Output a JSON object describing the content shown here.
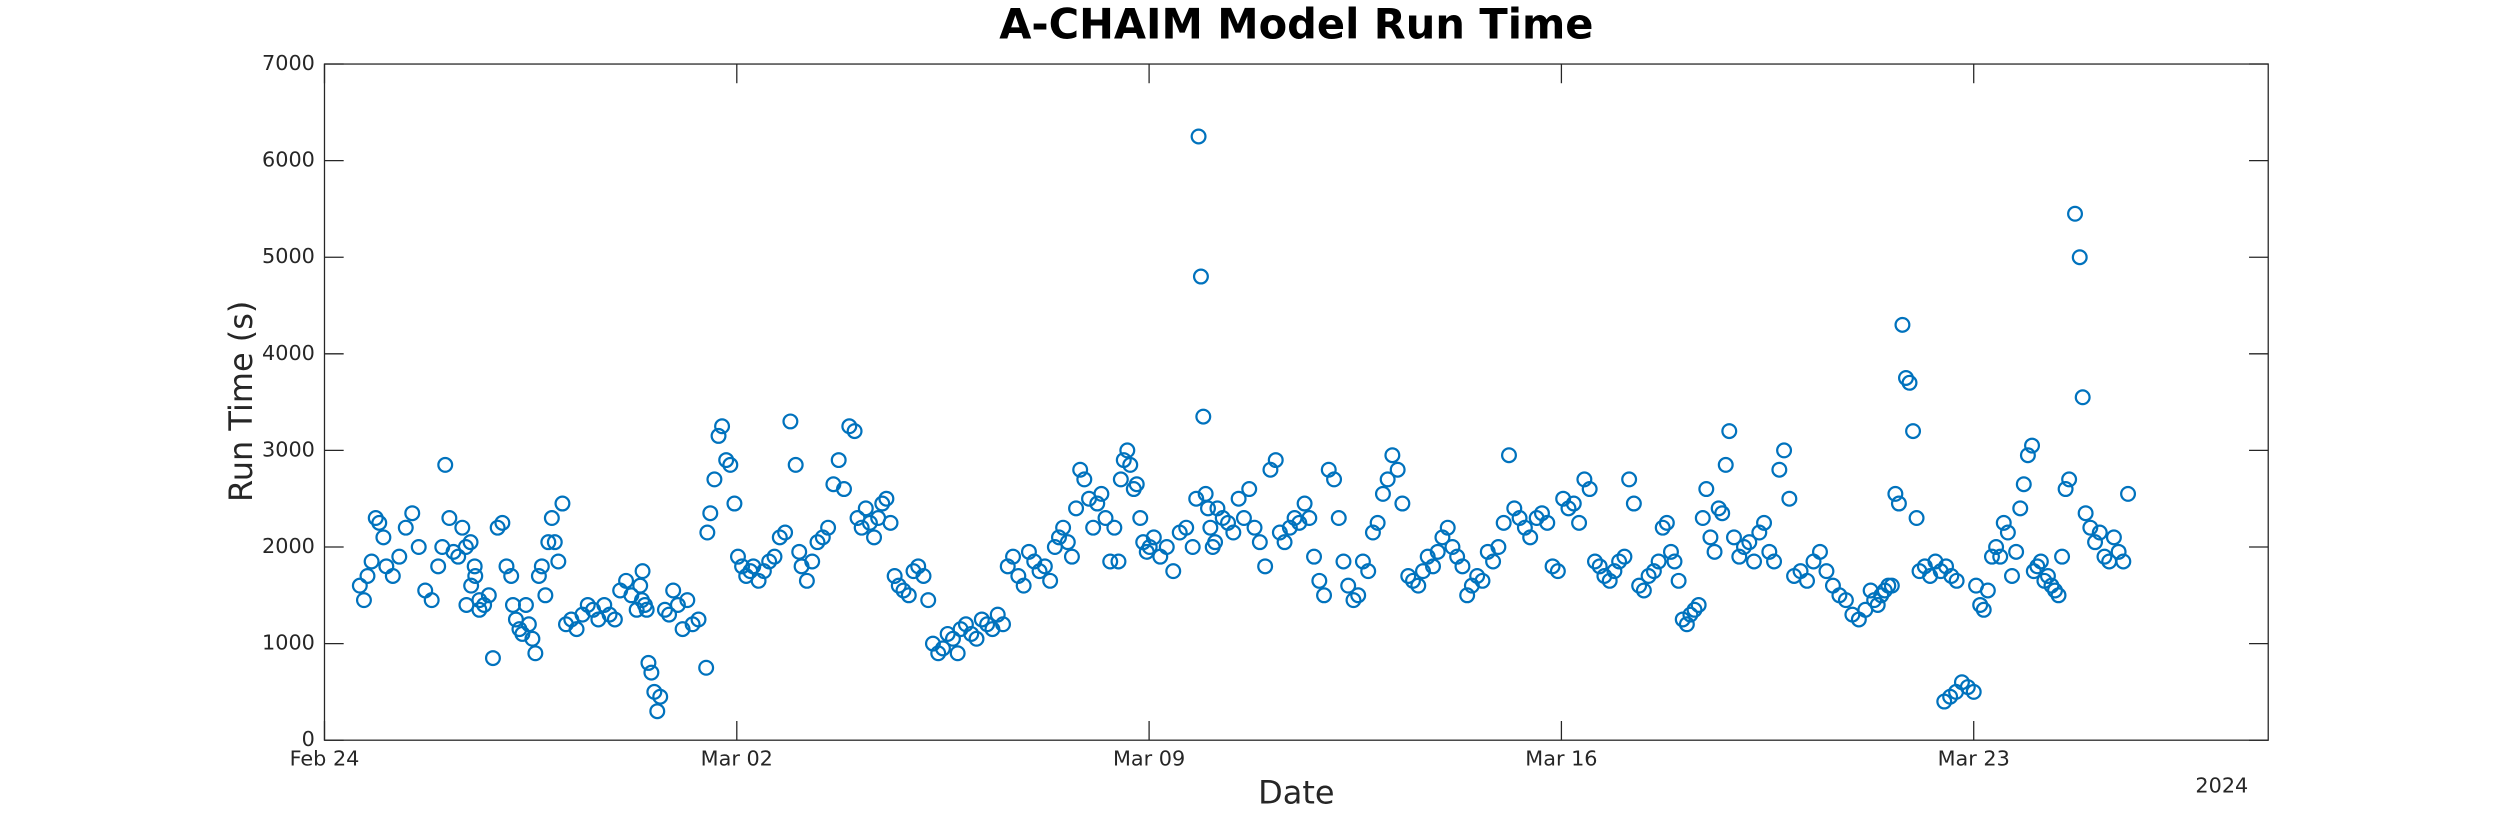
{
  "chart_data": {
    "type": "scatter",
    "title": "A-CHAIM Model Run Time",
    "xlabel": "Date",
    "xlabel_year": "2024",
    "ylabel": "Run Time (s)",
    "color": "#0072bd",
    "marker": "open-circle",
    "grid": false,
    "xlim": [
      0,
      33
    ],
    "xticks": [
      {
        "value": 0,
        "label": "Feb 24"
      },
      {
        "value": 7,
        "label": "Mar 02"
      },
      {
        "value": 14,
        "label": "Mar 09"
      },
      {
        "value": 21,
        "label": "Mar 16"
      },
      {
        "value": 28,
        "label": "Mar 23"
      }
    ],
    "ylim": [
      0,
      7000
    ],
    "yticks": [
      0,
      1000,
      2000,
      3000,
      4000,
      5000,
      6000,
      7000
    ],
    "x": [
      0.6,
      0.67,
      0.73,
      0.8,
      0.87,
      0.93,
      1.0,
      1.05,
      1.16,
      1.27,
      1.38,
      1.49,
      1.6,
      1.71,
      1.82,
      1.93,
      2.0,
      2.05,
      2.12,
      2.19,
      2.27,
      2.34,
      2.41,
      2.49,
      2.56,
      2.63,
      2.4,
      2.48,
      2.55,
      2.63,
      2.71,
      2.79,
      2.86,
      2.94,
      3.02,
      3.09,
      3.17,
      3.2,
      3.25,
      3.31,
      3.36,
      3.42,
      3.47,
      3.53,
      3.58,
      3.64,
      3.69,
      3.75,
      3.8,
      3.86,
      3.91,
      3.97,
      4.04,
      4.1,
      4.19,
      4.28,
      4.38,
      4.47,
      4.56,
      4.65,
      4.75,
      4.84,
      4.93,
      5.02,
      5.12,
      5.21,
      5.3,
      5.39,
      5.36,
      5.4,
      5.44,
      5.47,
      5.5,
      5.55,
      5.6,
      5.65,
      5.7,
      5.78,
      5.85,
      5.92,
      6.0,
      6.08,
      6.16,
      6.25,
      6.35,
      6.48,
      6.5,
      6.55,
      6.62,
      6.69,
      6.75,
      6.82,
      6.89,
      6.96,
      7.02,
      7.09,
      7.16,
      7.23,
      7.28,
      7.37,
      7.46,
      7.55,
      7.64,
      7.73,
      7.82,
      7.91,
      8.0,
      8.06,
      8.1,
      8.19,
      8.28,
      8.37,
      8.46,
      8.55,
      8.64,
      8.73,
      8.82,
      8.91,
      9.0,
      9.05,
      9.12,
      9.19,
      9.26,
      9.33,
      9.4,
      9.47,
      9.54,
      9.61,
      9.68,
      9.75,
      9.83,
      9.92,
      10.0,
      10.08,
      10.17,
      10.25,
      10.33,
      10.42,
      10.5,
      10.58,
      10.67,
      10.75,
      10.8,
      10.89,
      10.98,
      11.07,
      11.16,
      11.25,
      11.34,
      11.43,
      11.52,
      11.6,
      11.69,
      11.78,
      11.87,
      11.96,
      12.05,
      12.14,
      12.23,
      12.32,
      12.4,
      12.47,
      12.54,
      12.62,
      12.69,
      12.76,
      12.83,
      12.9,
      12.98,
      13.05,
      13.12,
      13.19,
      13.26,
      13.34,
      13.41,
      13.48,
      13.52,
      13.57,
      13.63,
      13.68,
      13.74,
      13.79,
      13.85,
      13.9,
      13.96,
      14.01,
      14.08,
      14.19,
      14.3,
      14.41,
      14.52,
      14.63,
      14.74,
      14.8,
      14.84,
      14.88,
      14.92,
      14.96,
      15.0,
      15.04,
      15.08,
      15.12,
      15.16,
      15.25,
      15.34,
      15.43,
      15.52,
      15.61,
      15.7,
      15.79,
      15.88,
      15.97,
      16.06,
      16.15,
      16.22,
      16.3,
      16.39,
      16.47,
      16.55,
      16.64,
      16.72,
      16.8,
      16.89,
      16.97,
      17.05,
      17.14,
      17.22,
      17.3,
      17.38,
      17.47,
      17.55,
      17.63,
      17.72,
      17.8,
      17.88,
      17.97,
      18.05,
      18.13,
      18.22,
      18.3,
      18.4,
      18.48,
      18.57,
      18.65,
      18.73,
      18.82,
      18.9,
      18.98,
      19.07,
      19.15,
      19.23,
      19.32,
      19.4,
      19.48,
      19.57,
      19.66,
      19.75,
      19.84,
      19.93,
      20.02,
      20.11,
      20.2,
      20.29,
      20.38,
      20.47,
      20.58,
      20.67,
      20.76,
      20.85,
      20.94,
      21.03,
      21.12,
      21.21,
      21.3,
      21.39,
      21.48,
      21.57,
      21.65,
      21.73,
      21.82,
      21.9,
      21.98,
      22.07,
      22.15,
      22.23,
      22.32,
      22.4,
      22.48,
      22.57,
      22.65,
      22.72,
      22.79,
      22.86,
      22.92,
      22.99,
      23.06,
      23.13,
      23.19,
      23.26,
      23.33,
      23.4,
      23.46,
      23.53,
      23.6,
      23.67,
      23.73,
      23.79,
      23.85,
      23.93,
      24.02,
      24.1,
      24.19,
      24.27,
      24.36,
      24.44,
      24.53,
      24.61,
      24.7,
      24.78,
      24.87,
      24.95,
      25.06,
      25.17,
      25.28,
      25.39,
      25.5,
      25.61,
      25.72,
      25.83,
      25.94,
      26.05,
      26.16,
      26.25,
      26.31,
      26.37,
      26.43,
      26.49,
      26.55,
      26.61,
      26.67,
      26.73,
      26.79,
      26.85,
      26.91,
      26.97,
      27.03,
      27.08,
      27.17,
      27.26,
      27.35,
      27.44,
      27.53,
      27.62,
      27.71,
      27.5,
      27.6,
      27.7,
      27.8,
      27.9,
      28.0,
      28.04,
      28.11,
      28.17,
      28.24,
      28.31,
      28.38,
      28.45,
      28.51,
      28.58,
      28.65,
      28.72,
      28.79,
      28.85,
      28.92,
      28.99,
      29.02,
      29.08,
      29.14,
      29.2,
      29.26,
      29.32,
      29.38,
      29.44,
      29.5,
      29.56,
      29.62,
      29.72,
      29.8,
      29.85,
      29.9,
      29.98,
      30.06,
      30.14,
      30.22,
      30.3,
      30.38,
      30.46,
      30.54,
      30.62
    ],
    "values": [
      1600,
      1450,
      1700,
      1850,
      2300,
      2250,
      2100,
      1800,
      1700,
      1900,
      2200,
      2350,
      2000,
      1550,
      1450,
      1800,
      2000,
      2850,
      2300,
      1950,
      1900,
      2200,
      1400,
      1600,
      1700,
      1350,
      2000,
      2050,
      1800,
      1450,
      1400,
      1500,
      850,
      2200,
      2250,
      1800,
      1700,
      1400,
      1250,
      1150,
      1100,
      1400,
      1200,
      1050,
      900,
      1700,
      1800,
      1500,
      2050,
      2300,
      2050,
      1850,
      2450,
      1200,
      1250,
      1150,
      1300,
      1400,
      1350,
      1250,
      1400,
      1300,
      1250,
      1550,
      1650,
      1500,
      1350,
      1450,
      1600,
      1750,
      1400,
      1350,
      800,
      700,
      500,
      300,
      450,
      1350,
      1300,
      1550,
      1400,
      1150,
      1450,
      1200,
      1250,
      750,
      2150,
      2350,
      2700,
      3150,
      3250,
      2900,
      2850,
      2450,
      1900,
      1800,
      1700,
      1750,
      1800,
      1650,
      1750,
      1850,
      1900,
      2100,
      2150,
      3300,
      2850,
      1950,
      1800,
      1650,
      1850,
      2050,
      2100,
      2200,
      2650,
      2900,
      2600,
      3250,
      3200,
      2300,
      2200,
      2400,
      2250,
      2100,
      2300,
      2450,
      2500,
      2250,
      1700,
      1600,
      1550,
      1500,
      1750,
      1800,
      1700,
      1450,
      1000,
      900,
      950,
      1100,
      1050,
      900,
      1150,
      1200,
      1100,
      1050,
      1250,
      1200,
      1150,
      1300,
      1200,
      1800,
      1900,
      1700,
      1600,
      1950,
      1850,
      1750,
      1800,
      1650,
      2000,
      2100,
      2200,
      2050,
      1900,
      2400,
      2800,
      2700,
      2500,
      2200,
      2450,
      2550,
      2300,
      1850,
      2200,
      1850,
      2700,
      2900,
      3000,
      2850,
      2600,
      2650,
      2300,
      2050,
      1950,
      2000,
      2100,
      1900,
      2000,
      1750,
      2150,
      2200,
      2000,
      2500,
      6250,
      4800,
      3350,
      2550,
      2400,
      2200,
      2000,
      2050,
      2400,
      2300,
      2250,
      2150,
      2500,
      2300,
      2600,
      2200,
      2050,
      1800,
      2800,
      2900,
      2150,
      2050,
      2200,
      2300,
      2250,
      2450,
      2300,
      1900,
      1650,
      1500,
      2800,
      2700,
      2300,
      1850,
      1600,
      1450,
      1500,
      1850,
      1750,
      2150,
      2250,
      2550,
      2700,
      2950,
      2800,
      2450,
      1700,
      1650,
      1600,
      1750,
      1900,
      1800,
      1950,
      2100,
      2200,
      2000,
      1900,
      1800,
      1500,
      1600,
      1700,
      1650,
      1950,
      1850,
      2000,
      2250,
      2950,
      2400,
      2300,
      2200,
      2100,
      2300,
      2350,
      2250,
      1800,
      1750,
      2500,
      2400,
      2450,
      2250,
      2700,
      2600,
      1850,
      1800,
      1700,
      1650,
      1750,
      1850,
      1900,
      2700,
      2450,
      1600,
      1550,
      1700,
      1750,
      1850,
      2200,
      2250,
      1950,
      1850,
      1650,
      1250,
      1200,
      1300,
      1350,
      1400,
      2300,
      2600,
      2100,
      1950,
      2400,
      2350,
      2850,
      3200,
      2100,
      1900,
      2000,
      2050,
      1850,
      2150,
      2250,
      1950,
      1850,
      2800,
      3000,
      2500,
      1700,
      1750,
      1650,
      1850,
      1950,
      1750,
      1600,
      1500,
      1450,
      1300,
      1250,
      1350,
      1550,
      1450,
      1400,
      1500,
      1550,
      1600,
      1600,
      2550,
      2450,
      4300,
      3750,
      3700,
      3200,
      2300,
      1750,
      1800,
      1700,
      1850,
      1750,
      1800,
      1700,
      1650,
      400,
      450,
      500,
      600,
      550,
      500,
      1600,
      1400,
      1350,
      1550,
      1900,
      2000,
      1900,
      2250,
      2150,
      1700,
      1950,
      2400,
      2650,
      2950,
      3050,
      1750,
      1800,
      1850,
      1650,
      1700,
      1600,
      1550,
      1500,
      1900,
      2600,
      2700,
      5450,
      5000,
      3550,
      2350,
      2200,
      2050,
      2150,
      1900,
      1850,
      2100,
      1950,
      1850,
      2550
    ]
  }
}
